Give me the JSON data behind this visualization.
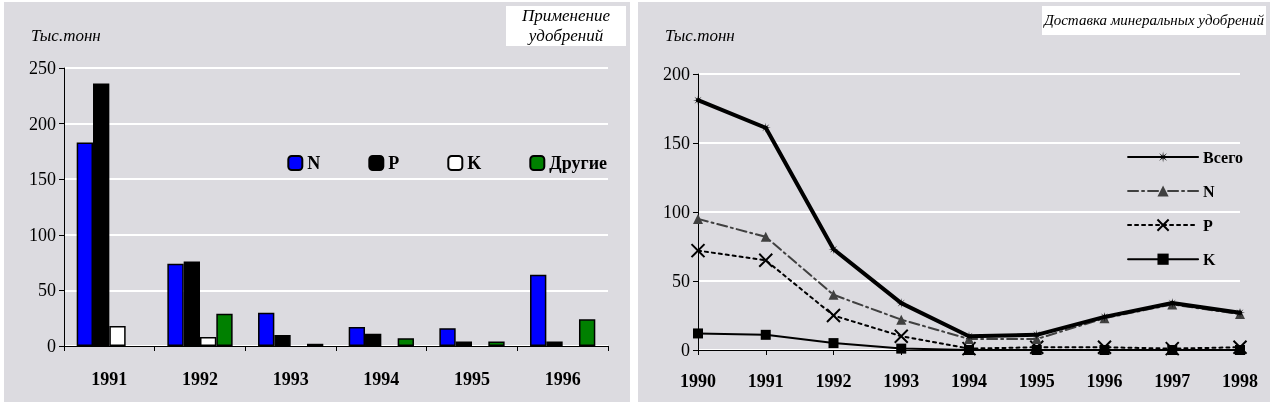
{
  "chart_data": [
    {
      "type": "bar",
      "title": "Применение удобрений",
      "ylabel": "Тыс.тонн",
      "categories": [
        "1991",
        "1992",
        "1993",
        "1994",
        "1995",
        "1996"
      ],
      "series": [
        {
          "name": "N",
          "color": "#0000ff",
          "values": [
            183,
            74,
            30,
            17,
            16,
            64
          ]
        },
        {
          "name": "P",
          "color": "#000000",
          "values": [
            236,
            76,
            10,
            11,
            4,
            4
          ]
        },
        {
          "name": "K",
          "color": "#ffffff",
          "values": [
            18,
            8,
            null,
            null,
            null,
            null
          ]
        },
        {
          "name": "Другие",
          "color": "#008000",
          "values": [
            null,
            29,
            2,
            7,
            4,
            24
          ]
        }
      ],
      "ylim": [
        0,
        250
      ],
      "yticks": [
        0,
        50,
        100,
        150,
        200,
        250
      ],
      "grid": "y",
      "legend": "right"
    },
    {
      "type": "line",
      "title": "Доставка минеральных удобрений",
      "ylabel": "Тыс.тонн",
      "x": [
        1990,
        1991,
        1992,
        1993,
        1994,
        1995,
        1996,
        1997,
        1998
      ],
      "series": [
        {
          "name": "Всего",
          "color": "#000000",
          "marker": "star",
          "line_style": "solid",
          "values": [
            181,
            161,
            73,
            34,
            10,
            11,
            24,
            34,
            27
          ]
        },
        {
          "name": "N",
          "color": "#404040",
          "marker": "triangle",
          "line_style": "dashed",
          "values": [
            95,
            82,
            40,
            22,
            8,
            8,
            23,
            33,
            26
          ]
        },
        {
          "name": "P",
          "color": "#000000",
          "marker": "cross",
          "line_style": "dotted",
          "values": [
            72,
            65,
            25,
            10,
            1,
            2,
            2,
            1,
            2
          ]
        },
        {
          "name": "K",
          "color": "#000000",
          "marker": "square",
          "line_style": "solid",
          "values": [
            12,
            11,
            5,
            1,
            0,
            0,
            0,
            0,
            0
          ]
        }
      ],
      "xlim": [
        1990,
        1998
      ],
      "xticks": [
        1990,
        1991,
        1992,
        1993,
        1994,
        1995,
        1996,
        1997,
        1998
      ],
      "ylim": [
        0,
        200
      ],
      "yticks": [
        0,
        50,
        100,
        150,
        200
      ],
      "grid": "y",
      "legend": "right"
    }
  ]
}
